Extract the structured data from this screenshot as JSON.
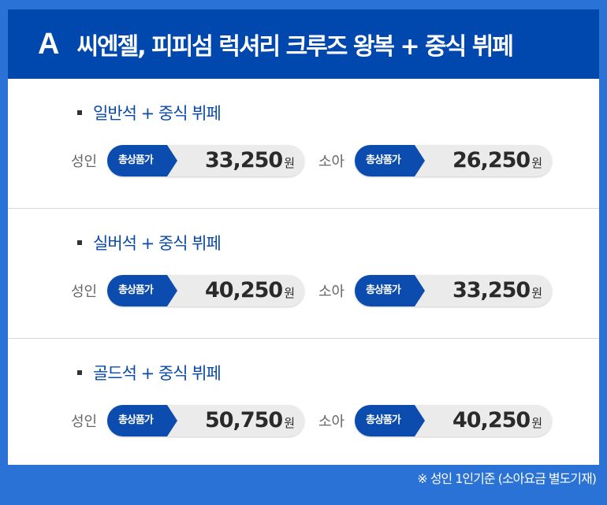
{
  "header": {
    "letter": "A",
    "title": "씨엔젤, 피피섬 럭셔리 크루즈 왕복 + 중식 뷔페"
  },
  "tag_label": "총상품가",
  "currency": "원",
  "sections": [
    {
      "title": "일반석 + 중식 뷔페",
      "adult_label": "성인",
      "adult_price": "33,250",
      "child_label": "소아",
      "child_price": "26,250"
    },
    {
      "title": "실버석 + 중식 뷔페",
      "adult_label": "성인",
      "adult_price": "40,250",
      "child_label": "소아",
      "child_price": "33,250"
    },
    {
      "title": "골드석 + 중식 뷔페",
      "adult_label": "성인",
      "adult_price": "50,750",
      "child_label": "소아",
      "child_price": "40,250"
    }
  ],
  "footer": "※ 성인 1인기준 (소아요금 별도기재)",
  "colors": {
    "frame": "#2a72d6",
    "header": "#0048ad",
    "tag": "#0b4cae",
    "title": "#0a4aa8"
  }
}
